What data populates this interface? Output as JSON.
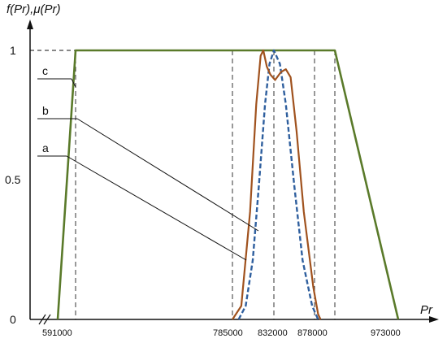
{
  "chart_data": {
    "type": "line",
    "ylabel": "f(Pr),μ(Pr)",
    "xlabel": "Pr",
    "y_ticks": [
      "0",
      "0.5",
      "1"
    ],
    "x_ticks": [
      "591000",
      "785000",
      "832000",
      "878000",
      "973000"
    ],
    "ylim": [
      0,
      1
    ],
    "annotations": [
      "a",
      "b",
      "c"
    ],
    "series": [
      {
        "label": "c",
        "style": "solid",
        "color": "#5a7a2a",
        "points": [
          [
            577000,
            0
          ],
          [
            593000,
            1
          ],
          [
            900000,
            1
          ],
          [
            973000,
            0
          ]
        ]
      },
      {
        "label": "b",
        "style": "dashed",
        "color": "#2f5f9e",
        "points": [
          [
            792000,
            0
          ],
          [
            800000,
            0.05
          ],
          [
            808000,
            0.22
          ],
          [
            815000,
            0.5
          ],
          [
            822000,
            0.8
          ],
          [
            827000,
            0.95
          ],
          [
            832000,
            1.0
          ],
          [
            837000,
            0.95
          ],
          [
            842000,
            0.8
          ],
          [
            849000,
            0.5
          ],
          [
            856000,
            0.22
          ],
          [
            864000,
            0.05
          ],
          [
            872000,
            0
          ]
        ]
      },
      {
        "label": "a",
        "style": "solid",
        "color": "#a0521e",
        "points": [
          [
            785000,
            0
          ],
          [
            795000,
            0.05
          ],
          [
            805000,
            0.4
          ],
          [
            812000,
            0.8
          ],
          [
            817000,
            0.98
          ],
          [
            820000,
            1.0
          ],
          [
            824000,
            0.94
          ],
          [
            828000,
            0.91
          ],
          [
            833000,
            0.89
          ],
          [
            838000,
            0.92
          ],
          [
            842000,
            0.93
          ],
          [
            846000,
            0.9
          ],
          [
            851000,
            0.7
          ],
          [
            857000,
            0.4
          ],
          [
            865000,
            0.12
          ],
          [
            872000,
            0.02
          ],
          [
            876000,
            0
          ]
        ]
      }
    ],
    "reference_lines_x": [
      593000,
      785000,
      832000,
      866000,
      900000
    ]
  }
}
